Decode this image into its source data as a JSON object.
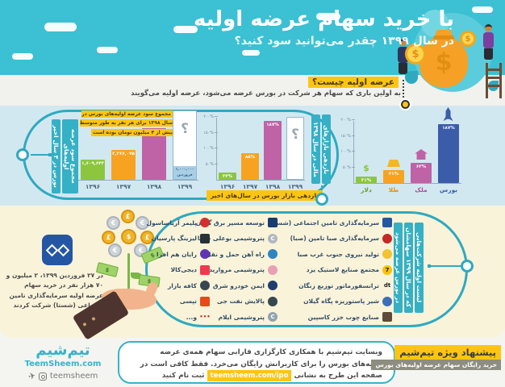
{
  "accent": {
    "teal": "#35b4c9",
    "yellow": "#fdc513",
    "green": "#8cc63e",
    "orange": "#f7a321",
    "magenta": "#bf62a6",
    "blue": "#3b5ca9"
  },
  "header": {
    "title": "با خرید سهام عرضه اولیه",
    "subtitle": "در سال ۱۳۹۹ چقدر می‌توانید سود کنید؟"
  },
  "intro": {
    "question": "عرضه اولیه چیست؟",
    "answer": "به اولین باری که سهام هر شرکت در بورس عرضه می‌شود، عرضه اولیه می‌گویند"
  },
  "chart_data": [
    {
      "type": "bar",
      "title": "مجموع سود عرضه اولیه‌های بورس در ۳ سال اخیر",
      "title_lines": [
        "مجموع سود عرضه اولیه‌های",
        "بورس در ۳ سال اخیر"
      ],
      "categories": [
        "۱۳۹۶",
        "۱۳۹۷",
        "۱۳۹۸",
        "۱۳۹۹"
      ],
      "values": [
        1609643,
        2366075,
        4087435,
        null
      ],
      "value_labels": [
        "۱,۶۰۹,۶۴۳",
        "۲,۳۶۶,۰۷۵",
        "۴,۰۸۷,۴۳۵",
        "؟"
      ],
      "unknown_note_lines": [
        "۱,۰۰۰,۰۰۰",
        "فروردین"
      ],
      "annotation": "مجموع سود عرضه اولیه‌های بورس در سال ۱۳۹۸ برای هر نفر به طور متوسط بیش از ۴ میلیون تومان بوده است",
      "colors": [
        "#8cc63e",
        "#f7a321",
        "#bf62a6",
        "outline"
      ]
    },
    {
      "type": "bar",
      "title": "بازدهی بازار بورس در سال‌های اخیر",
      "categories": [
        "۱۳۹۶",
        "۱۳۹۷",
        "۱۳۹۸",
        "۱۳۹۹"
      ],
      "values": [
        24,
        85,
        187,
        null
      ],
      "value_labels": [
        "۲۴%",
        "۸۵%",
        "۱۸۷%",
        "؟"
      ],
      "ylim": [
        0,
        200
      ],
      "yticks": [
        "۵۰%",
        "۱۰۰%",
        "۱۵۰%",
        "۲۰۰%"
      ],
      "ytick_values": [
        50,
        100,
        150,
        200
      ],
      "colors": [
        "#8cc63e",
        "#f7a321",
        "#bf62a6",
        "outline"
      ]
    },
    {
      "type": "bar",
      "title": "بازدهی بازارهای مالی در سال ۱۳۹۸",
      "title_lines": [
        "بازدهی بازارهای",
        "مالی در سال ۱۳۹۸"
      ],
      "categories": [
        "دلار",
        "طلا",
        "ملک",
        "بورس"
      ],
      "values": [
        21,
        41,
        63,
        187
      ],
      "value_labels": [
        "۲۱%",
        "۴۱%",
        "۶۳%",
        "۱۸۷%"
      ],
      "ylim": [
        0,
        200
      ],
      "yticks": [
        "۵۰%",
        "۱۰۰%",
        "۱۵۰%",
        "۲۰۰%"
      ],
      "ytick_values": [
        50,
        100,
        150,
        200
      ],
      "colors": [
        "#8cc63e",
        "#f7a321",
        "#bf62a6",
        "#3b5ca9"
      ],
      "cat_colors": [
        "#6da02f",
        "#e8920e",
        "#b04e97",
        "#3b5ca9"
      ],
      "icons": [
        "dollar-icon",
        "gold-icon",
        "house-icon",
        "rocket-icon"
      ]
    }
  ],
  "companies": {
    "label_lines": [
      "لیست اولیه شرکت‌هایی",
      "که در سال ۱۳۹۹ سهامشان",
      "در بورس عرضه می‌شود"
    ],
    "col_a": [
      {
        "name": "سرمایه‌گذاری تامین اجتماعی (شستا)",
        "logo": {
          "color": "#2456a4",
          "shape": "square",
          "glyph": ""
        }
      },
      {
        "name": "سرمایه‌گذاری صبا تامین (صبا)",
        "logo": {
          "color": "#c62828",
          "shape": "circle",
          "glyph": ""
        }
      },
      {
        "name": "تولید نیروی جنوب غرب صبا",
        "logo": {
          "color": "#f2c230",
          "shape": "circle",
          "glyph": ""
        }
      },
      {
        "name": "مجتمع صنایع لاستیک یزد",
        "logo": {
          "color": "#f5c400",
          "shape": "circle",
          "glyph": "7",
          "glyph_color": "#222222"
        }
      },
      {
        "name": "ترانسفورماتور توزیع زنگان",
        "logo": {
          "color": "",
          "shape": "none",
          "glyph": "dt",
          "glyph_color": "#222222"
        }
      },
      {
        "name": "شیر پاستوریزه پگاه گیلان",
        "logo": {
          "color": "#3d6fb5",
          "shape": "circle",
          "glyph": ""
        }
      },
      {
        "name": "صنایع چوب خزر کاسپین",
        "logo": {
          "color": "#5d4a38",
          "shape": "square",
          "glyph": ""
        }
      }
    ],
    "col_b": [
      {
        "name": "توسعه مسیر برق گیلان",
        "logo": {
          "color": "#1a3c6e",
          "shape": "square",
          "glyph": ""
        }
      },
      {
        "name": "پتروشیمی بوعلی سینا",
        "logo": {
          "color": "#b0b7bd",
          "shape": "circle",
          "glyph": "C"
        }
      },
      {
        "name": "راه آهن حمل و نقل",
        "logo": {
          "color": "#2e86c1",
          "shape": "circle",
          "glyph": ""
        }
      },
      {
        "name": "پتروشیمی مروارید",
        "logo": {
          "color": "#e8a0b4",
          "shape": "circle",
          "glyph": ""
        }
      },
      {
        "name": "ایمن خودرو شرق",
        "logo": {
          "color": "#1f3d6e",
          "shape": "circle",
          "glyph": ""
        }
      },
      {
        "name": "پالایش نفت جی",
        "logo": {
          "color": "#37474f",
          "shape": "circle",
          "glyph": ""
        }
      },
      {
        "name": "پتروشیمی ایلام",
        "logo": {
          "color": "#90a4ae",
          "shape": "circle",
          "glyph": "C"
        }
      }
    ],
    "col_c": [
      {
        "name": "پلیمر آریاساسول",
        "logo": {
          "color": "#d32f2f",
          "shape": "circle",
          "glyph": ""
        }
      },
      {
        "name": "لیزینگ پارسیان",
        "logo": {
          "color": "#263238",
          "shape": "square",
          "glyph": ""
        }
      },
      {
        "name": "رایان هم افزا",
        "logo": {
          "color": "#5e35b1",
          "shape": "circle",
          "glyph": ""
        }
      },
      {
        "name": "دیجی‌کالا",
        "logo": {
          "color": "#ef394e",
          "shape": "square",
          "glyph": ""
        }
      },
      {
        "name": "کافه بازار",
        "logo": {
          "color": "#37474f",
          "shape": "circle",
          "glyph": ""
        }
      },
      {
        "name": "تپسی",
        "logo": {
          "color": "#e64a19",
          "shape": "square",
          "glyph": ""
        }
      },
      {
        "name": "و...",
        "logo": {
          "color": "#d32f2f",
          "shape": "dots",
          "glyph": "•••",
          "glyph_color": "#d32f2f"
        }
      }
    ]
  },
  "shasta": {
    "note": "در ۲۷ فروردین ۱۳۹۹، ۲ میلیون و ۷۰ هزار نفر در خرید سهام عرضه اولیه سرمایه‌گذاری تامین اجتماعی (شستا) شرکت کردند"
  },
  "footer": {
    "logo_fa": "تیم‌شیم",
    "logo_url": "TeemSheem.com",
    "social_handle": "teemsheem",
    "offer_line_1": "وبسایت تیم‌شیم با همکاری کارگزاری فارابی سهام همه‌ی عرضه",
    "offer_line_2": "اولیه‌های بورس را برای کاربرانش رایگان می‌خرد. فقط کافی است در",
    "offer_line_3a": "صفحه این طرح به نشانی",
    "offer_link": "teemsheem.com/ipo",
    "offer_line_3b": "ثبت نام کنید",
    "promo_title": "پیشنهاد ویژه تیم‌شیم",
    "promo_subtitle": "خرید رایگان سهام عرضه اولیه‌های بورس"
  }
}
